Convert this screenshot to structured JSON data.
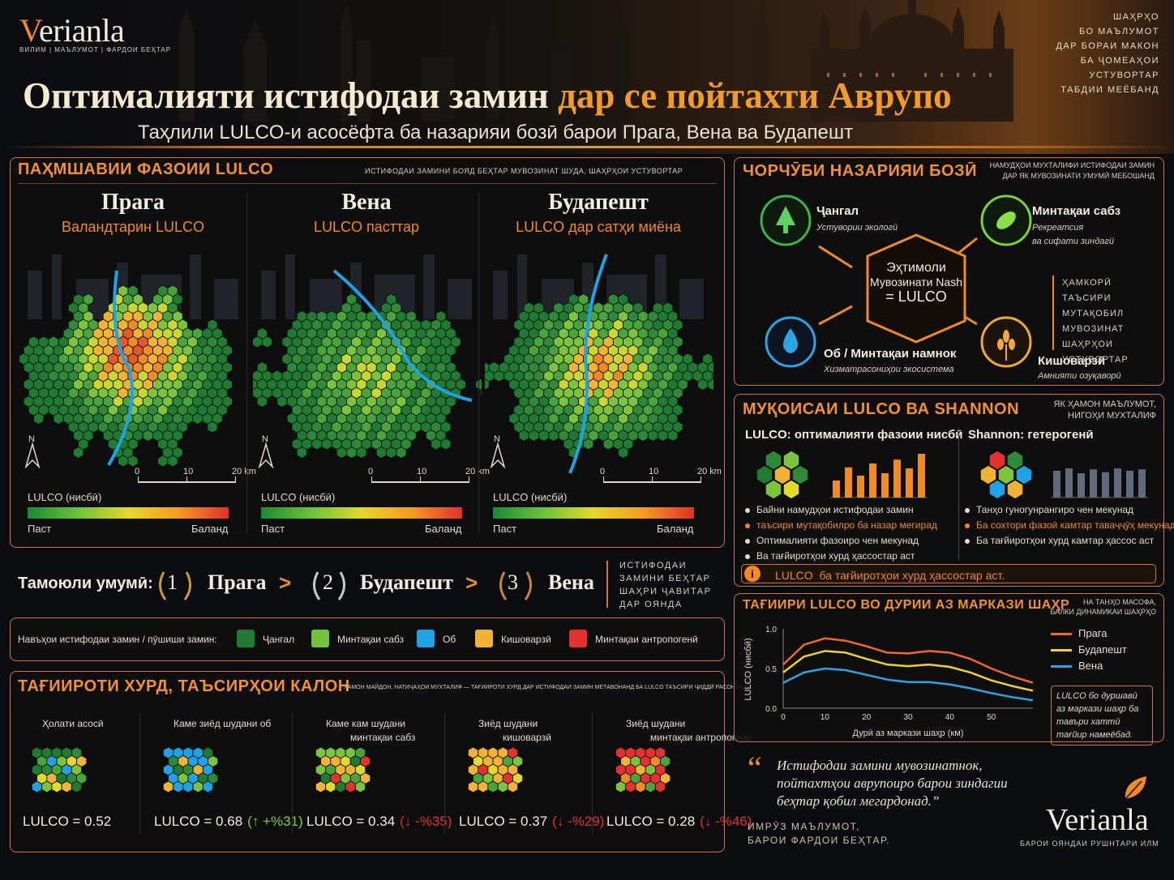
{
  "brand": {
    "name_pre": "V",
    "name_rest": "erianla",
    "tagline": "ВИЛИМ | МАЪЛУМОТ | ФАРДОИ БЕҲТАР",
    "footer_tagline": "БАРОИ ОЯНДАИ РУШНТАРИ ИЛМ"
  },
  "right_note": [
    "ШАҲРҲО",
    "БО МАЪЛУМОТ",
    "ДАР БОРАИ МАКОН",
    "БА ҶОМЕАҲОИ",
    "УСТУВОРТАР",
    "ТАБДИИ МЕЁБАНД"
  ],
  "title": {
    "part1": "Оптималияти истифодаи замин",
    "part2": "дар се пойтахти Аврупо",
    "subtitle": "Таҳлили LULCO-и асосёфта ба назарияи бозӣ барои Прага, Вена ва Будапешт"
  },
  "spatial": {
    "title": "ПАҲМШАВИИ ФАЗОИИ LULCO",
    "note": "ИСТИФОДАИ ЗАМИНИ БОЯД БЕҲТАР МУВОЗИНАТ ШУДА, ШАҲРҲОИ УСТУВОРТАР",
    "cities": [
      {
        "name": "Прага",
        "sub": "Валандтарин LULCO"
      },
      {
        "name": "Вена",
        "sub": "LULCO пасттар"
      },
      {
        "name": "Будапешт",
        "sub": "LULCO дар сатҳи миёна"
      }
    ],
    "north": "N",
    "scale_ticks": [
      "0",
      "10",
      "20 km"
    ],
    "scale_title": "LULCO (нисбӣ)",
    "scale_low": "Паст",
    "scale_high": "Баланд"
  },
  "ranking": {
    "label": "Тамоюли умумӣ:",
    "items": [
      {
        "num": "1",
        "city": "Прага"
      },
      {
        "num": "2",
        "city": "Будапешт"
      },
      {
        "num": "3",
        "city": "Вена"
      }
    ],
    "arrow": ">",
    "note": [
      "ИСТИФОДАИ",
      "ЗАМИНИ БЕҲТАР",
      "ШАҲРИ ҶАВИТАР",
      "ДАР ОЯНДА"
    ]
  },
  "landuse_legend": {
    "label": "Навъҳои истифодаи замин / пӯшиши замин:",
    "items": [
      {
        "name": "Ҷангал",
        "color": "#1f7a32"
      },
      {
        "name": "Минтақаи сабз",
        "color": "#74c23c"
      },
      {
        "name": "Об",
        "color": "#1fa2e6"
      },
      {
        "name": "Кишоварзӣ",
        "color": "#f2b233"
      },
      {
        "name": "Минтақаи антропогенӣ",
        "color": "#e53030"
      }
    ]
  },
  "scenarios": {
    "title": "ТАҒИИРОТИ ХУРД, ТАЪСИРҲОИ КАЛОН",
    "note": "ҲАМОН МАЙДОН, НАТИҶАҲОИ МУХТАЛИФ — ТАҒИИРОТИ ХУРД ДАР ИСТИФОДАИ ЗАМИН МЕТАВОНАНД БА LULCO ТАЪСИРИ ҶИДДӢ РАСОНАНД.",
    "items": [
      {
        "label1": "Ҳолати асосӣ",
        "label2": "",
        "value": "LULCO = 0.52",
        "change": "",
        "dir": "none"
      },
      {
        "label1": "Каме зиёд шудани об",
        "label2": "",
        "value": "LULCO = 0.68",
        "change": "+%31)",
        "dir": "up"
      },
      {
        "label1": "Каме кам шудани",
        "label2": "минтақаи сабз",
        "value": "LULCO = 0.34",
        "change": "-%35)",
        "dir": "down"
      },
      {
        "label1": "Зиёд шудани",
        "label2": "кишоварзӣ",
        "value": "LULCO = 0.37",
        "change": "-%29)",
        "dir": "down"
      },
      {
        "label1": "Зиёд шудани",
        "label2": "минтақаи антропогенӣ",
        "value": "LULCO = 0.28",
        "change": "-%46)",
        "dir": "down"
      }
    ]
  },
  "framework": {
    "title": "ЧОРЧӮБИ НАЗАРИЯИ БОЗӢ",
    "note": [
      "НАМУДҲОИ МУХТАЛИФИ ИСТИФОДАИ ЗАМИН",
      "ДАР ЯК МУВОЗИНАТИ УМУМӢ МЕБОШАНД"
    ],
    "center": [
      "Эҳтимоли",
      "Мувозинати Nash",
      "= LULCO"
    ],
    "nodes": [
      {
        "label": "Ҷангал",
        "sub": "Устувории экологӣ"
      },
      {
        "label": "Минтақаи сабз",
        "sub1": "Рекреатсия",
        "sub2": "ва сифати зиндагӣ"
      },
      {
        "label": "Об / Минтақаи намнок",
        "sub": "Хизматрасониҳои экосистема"
      },
      {
        "label": "Кишоварзӣ",
        "sub": "Амнияти озуқаворӣ"
      }
    ],
    "side": [
      "ҲАМКОРӢ",
      "ТАЪСИРИ МУТАҚОБИЛ",
      "МУВОЗИНАТ",
      "ШАҲРҲОИ",
      "УСТУВОРТАР"
    ]
  },
  "compare": {
    "title": "МУҚОИСАИ LULCO ВА SHANNON",
    "note": [
      "ЯК ҲАМОН МАЪЛУМОТ,",
      "НИГОҲИ МУХТАЛИФ"
    ],
    "lulco_head": "LULCO: оптималияти фазоии нисбӣ",
    "shannon_head": "Shannon: гетерогенӣ",
    "lulco_bullets": [
      {
        "text": "Байни намудҳои истифодаи замин",
        "color": "#e6dccb"
      },
      {
        "text": "таъсири мутақобилро ба назар мегирад",
        "color": "#f08a24"
      },
      {
        "text": "Оптималияти фазоиро чен мекунад",
        "color": "#e6dccb"
      },
      {
        "text": "Ва тағйиротҳои хурд ҳассостар аст",
        "color": "#e6dccb"
      }
    ],
    "shannon_bullets": [
      {
        "text": "Танҳо гуногунрангиро чен мекунад",
        "color": "#e6dccb"
      },
      {
        "text": "Ба сохтори фазоӣ камтар таваҷҷӯҳ мекунад",
        "color": "#f08a24"
      },
      {
        "text": "Ба тағйиротҳои хурд камтар ҳассос аст",
        "color": "#e6dccb"
      }
    ],
    "callout": "LULCO  ба тағйиротҳои хурд ҳассостар аст.",
    "lulco_bars": [
      0.35,
      0.62,
      0.45,
      0.7,
      0.5,
      0.78,
      0.6,
      0.9
    ],
    "shannon_bars": [
      0.55,
      0.6,
      0.5,
      0.58,
      0.52,
      0.6,
      0.55,
      0.58
    ]
  },
  "distance": {
    "title": "ТАҒИИРИ LULCO ВО ДУРИИ АЗ МАРКАЗИ ШАҲР",
    "note": [
      "НА ТАНҲО МАСОФА,",
      "БАЛКИ ДИНАМИКАИ ШАҲРҲО"
    ],
    "callout": "LULCO бо дуршавӣ аз маркази шаҳр ба тавъри хаттӣ тағйир намеёбад."
  },
  "chart_data": {
    "type": "line",
    "xlabel": "Дурӣ аз маркази шаҳр (км)",
    "ylabel": "LULCO (нисбӣ)",
    "x": [
      0,
      5,
      10,
      15,
      20,
      25,
      30,
      35,
      40,
      45,
      50,
      55,
      60
    ],
    "xticks": [
      "0",
      "10",
      "20",
      "30",
      "40",
      "50"
    ],
    "yticks": [
      "0.0",
      "0.5",
      "1.0"
    ],
    "xlim": [
      0,
      60
    ],
    "ylim": [
      0,
      1.0
    ],
    "series": [
      {
        "name": "Прага",
        "color": "#f0682a",
        "values": [
          0.55,
          0.8,
          0.88,
          0.85,
          0.78,
          0.7,
          0.69,
          0.72,
          0.7,
          0.62,
          0.5,
          0.4,
          0.32
        ]
      },
      {
        "name": "Будапешт",
        "color": "#f2d22a",
        "values": [
          0.45,
          0.65,
          0.72,
          0.7,
          0.62,
          0.55,
          0.53,
          0.55,
          0.52,
          0.45,
          0.35,
          0.28,
          0.22
        ]
      },
      {
        "name": "Вена",
        "color": "#2aa6e6",
        "values": [
          0.32,
          0.45,
          0.5,
          0.48,
          0.42,
          0.36,
          0.33,
          0.33,
          0.3,
          0.25,
          0.19,
          0.14,
          0.1
        ]
      }
    ]
  },
  "quote": {
    "text1": "Истифодаи замини мувозинатнок,",
    "text2": "пойтахтҳои аврупоиро барои зиндагии",
    "text3": "беҳтар қобил мегардонад.”",
    "sig1": "ИМРӮЗ МАЪЛУМОТ,",
    "sig2": "БАРОИ ФАРДОИ БЕҲТАР."
  }
}
